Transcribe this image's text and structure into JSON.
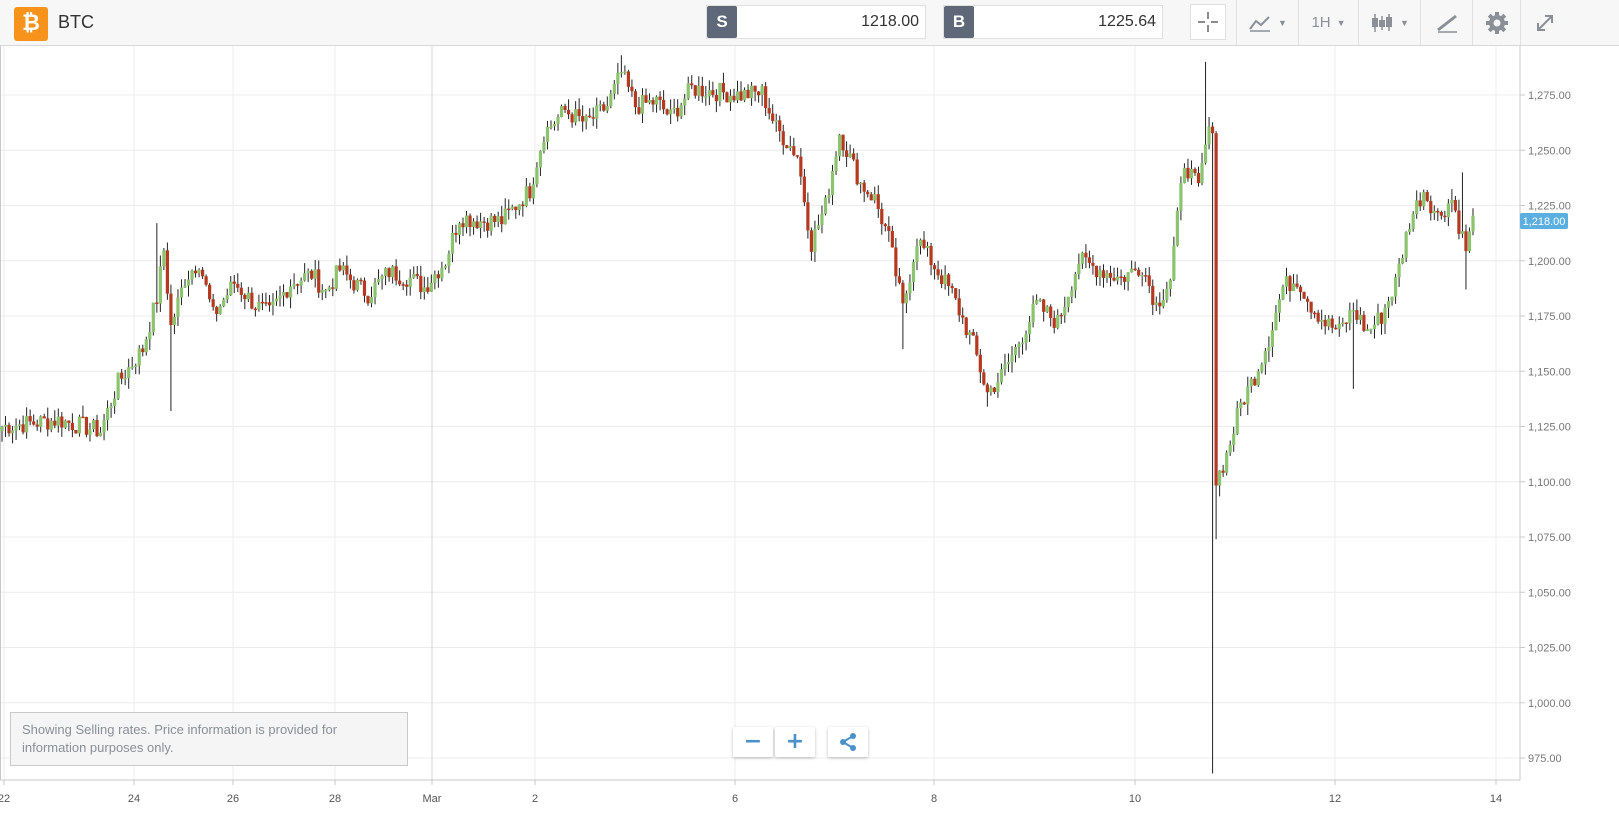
{
  "header": {
    "symbol": "BTC",
    "logo_icon": "bitcoin-icon",
    "sell": {
      "letter": "S",
      "value": "1218.00"
    },
    "buy": {
      "letter": "B",
      "value": "1225.64"
    },
    "timeframe": "1H",
    "tools": [
      "crosshair-icon",
      "chart-type-icon",
      "timeframe-dropdown",
      "candlestick-icon",
      "draw-icon",
      "gear-icon",
      "expand-icon"
    ]
  },
  "info_text": "Showing Selling rates. Price information is provided for information purposes only.",
  "controls": {
    "zoom_out": "−",
    "zoom_in": "+",
    "share_icon": "share-icon"
  },
  "colors": {
    "up": "#8cc36f",
    "down": "#b33a20",
    "current_price_tag": "#5aaee0",
    "sell_buy_badge": "#5f6878",
    "logo": "#f7931a"
  },
  "chart_data": {
    "type": "candlestick",
    "series_name": "BTC",
    "interval": "1H",
    "current_price": 1218.0,
    "current_price_label": "1,218.00",
    "ylim": [
      965,
      1295
    ],
    "yticks": [
      975,
      1000,
      1025,
      1050,
      1075,
      1100,
      1125,
      1150,
      1175,
      1200,
      1225,
      1250,
      1275
    ],
    "ytick_labels": [
      "975.00",
      "1,000.00",
      "1,025.00",
      "1,050.00",
      "1,075.00",
      "1,100.00",
      "1,125.00",
      "1,150.00",
      "1,175.00",
      "1,200.00",
      "1,225.00",
      "1,250.00",
      "1,275.00"
    ],
    "xlim": [
      22,
      13.8
    ],
    "xticks": [
      {
        "day": 22,
        "label": "22"
      },
      {
        "day": 24,
        "label": "24"
      },
      {
        "day": 26,
        "label": "26"
      },
      {
        "day": 28,
        "label": "28"
      },
      {
        "day": 30,
        "label": "Mar"
      },
      {
        "day": 31,
        "label": "2"
      },
      {
        "day": 33,
        "label": "6"
      },
      {
        "day": 35,
        "label": "8"
      },
      {
        "day": 37,
        "label": "10"
      },
      {
        "day": 39,
        "label": "12"
      },
      {
        "day": 40.6,
        "label": "14"
      }
    ],
    "grid": true,
    "anchors": [
      [
        0,
        1125
      ],
      [
        16,
        1128
      ],
      [
        28,
        1123
      ],
      [
        33,
        1145
      ],
      [
        40,
        1160
      ],
      [
        44,
        1183
      ],
      [
        46,
        1205
      ],
      [
        48,
        1170
      ],
      [
        52,
        1192
      ],
      [
        56,
        1200
      ],
      [
        60,
        1175
      ],
      [
        66,
        1190
      ],
      [
        72,
        1180
      ],
      [
        76,
        1176
      ],
      [
        82,
        1190
      ],
      [
        88,
        1194
      ],
      [
        92,
        1186
      ],
      [
        96,
        1196
      ],
      [
        100,
        1190
      ],
      [
        104,
        1185
      ],
      [
        110,
        1195
      ],
      [
        116,
        1192
      ],
      [
        120,
        1188
      ],
      [
        126,
        1200
      ],
      [
        130,
        1220
      ],
      [
        136,
        1218
      ],
      [
        142,
        1218
      ],
      [
        150,
        1232
      ],
      [
        154,
        1258
      ],
      [
        160,
        1268
      ],
      [
        166,
        1262
      ],
      [
        172,
        1270
      ],
      [
        176,
        1285
      ],
      [
        180,
        1270
      ],
      [
        186,
        1272
      ],
      [
        190,
        1265
      ],
      [
        196,
        1278
      ],
      [
        210,
        1275
      ],
      [
        216,
        1276
      ],
      [
        220,
        1260
      ],
      [
        226,
        1248
      ],
      [
        230,
        1208
      ],
      [
        234,
        1225
      ],
      [
        238,
        1258
      ],
      [
        244,
        1235
      ],
      [
        248,
        1228
      ],
      [
        252,
        1210
      ],
      [
        256,
        1178
      ],
      [
        260,
        1210
      ],
      [
        266,
        1195
      ],
      [
        270,
        1185
      ],
      [
        276,
        1162
      ],
      [
        280,
        1140
      ],
      [
        284,
        1148
      ],
      [
        288,
        1160
      ],
      [
        294,
        1180
      ],
      [
        300,
        1172
      ],
      [
        306,
        1200
      ],
      [
        312,
        1196
      ],
      [
        318,
        1192
      ],
      [
        324,
        1198
      ],
      [
        328,
        1180
      ],
      [
        332,
        1192
      ],
      [
        336,
        1245
      ],
      [
        340,
        1232
      ],
      [
        342,
        1252
      ],
      [
        344,
        1262
      ],
      [
        345,
        1100
      ],
      [
        348,
        1112
      ],
      [
        352,
        1135
      ],
      [
        356,
        1148
      ],
      [
        360,
        1165
      ],
      [
        364,
        1188
      ],
      [
        368,
        1192
      ],
      [
        372,
        1180
      ],
      [
        376,
        1172
      ],
      [
        380,
        1168
      ],
      [
        384,
        1178
      ],
      [
        388,
        1168
      ],
      [
        392,
        1175
      ],
      [
        396,
        1190
      ],
      [
        400,
        1218
      ],
      [
        404,
        1232
      ],
      [
        408,
        1220
      ],
      [
        412,
        1228
      ],
      [
        416,
        1205
      ],
      [
        418,
        1218
      ]
    ],
    "spikes": [
      {
        "candle": 44,
        "high": 1217
      },
      {
        "candle": 48,
        "low": 1132
      },
      {
        "candle": 176,
        "high": 1293
      },
      {
        "candle": 230,
        "low": 1200
      },
      {
        "candle": 256,
        "low": 1160
      },
      {
        "candle": 280,
        "low": 1134
      },
      {
        "candle": 342,
        "high": 1290
      },
      {
        "candle": 344,
        "low": 968
      },
      {
        "candle": 345,
        "low": 1074
      },
      {
        "candle": 384,
        "low": 1142
      },
      {
        "candle": 416,
        "low": 1187
      },
      {
        "candle": 415,
        "high": 1240
      }
    ]
  }
}
